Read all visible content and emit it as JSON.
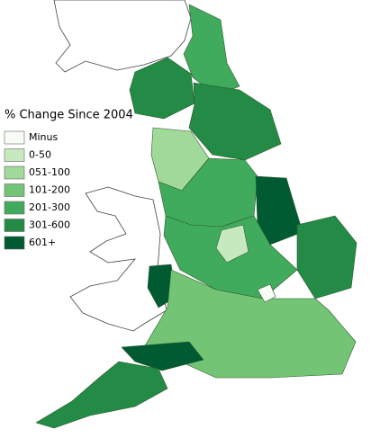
{
  "legend": {
    "title": "% Change Since 2004",
    "items": [
      {
        "label": "Minus",
        "color": "#f7fcf5"
      },
      {
        "label": "0-50",
        "color": "#c7e9c0"
      },
      {
        "label": "051-100",
        "color": "#a1d99b"
      },
      {
        "label": "101-200",
        "color": "#74c476"
      },
      {
        "label": "201-300",
        "color": "#41ab5d"
      },
      {
        "label": "301-600",
        "color": "#238b45"
      },
      {
        "label": "601+",
        "color": "#005a32"
      }
    ]
  }
}
